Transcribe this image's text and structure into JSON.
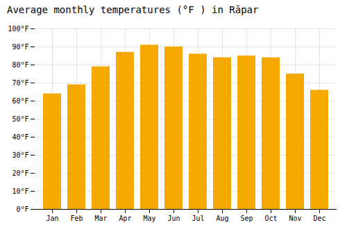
{
  "chart_data": {
    "type": "bar",
    "title": "Average monthly temperatures (°F ) in Rāpar",
    "categories": [
      "Jan",
      "Feb",
      "Mar",
      "Apr",
      "May",
      "Jun",
      "Jul",
      "Aug",
      "Sep",
      "Oct",
      "Nov",
      "Dec"
    ],
    "values": [
      64,
      69,
      79,
      87,
      91,
      90,
      86,
      84,
      85,
      84,
      75,
      66
    ],
    "color": "#F5A800",
    "ylim": [
      0,
      100
    ],
    "yticks": [
      {
        "value": 0,
        "label": "0°F"
      },
      {
        "value": 10,
        "label": "10°F"
      },
      {
        "value": 20,
        "label": "20°F"
      },
      {
        "value": 30,
        "label": "30°F"
      },
      {
        "value": 40,
        "label": "40°F"
      },
      {
        "value": 50,
        "label": "50°F"
      },
      {
        "value": 60,
        "label": "60°F"
      },
      {
        "value": 70,
        "label": "70°F"
      },
      {
        "value": 80,
        "label": "80°F"
      },
      {
        "value": 90,
        "label": "90°F"
      },
      {
        "value": 100,
        "label": "100°F"
      }
    ],
    "grid": true
  }
}
